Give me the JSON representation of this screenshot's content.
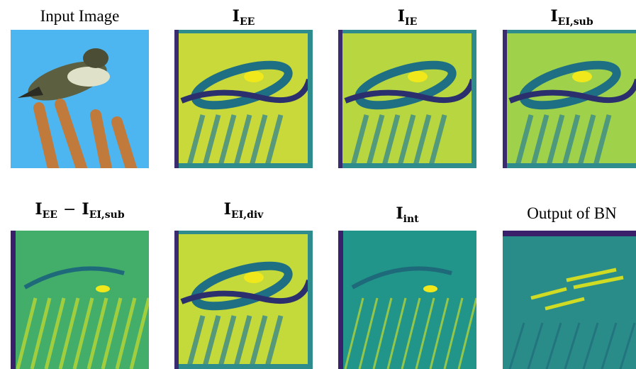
{
  "panels": [
    {
      "caption": {
        "text": "Input Image"
      },
      "kind": "photo",
      "palette": {
        "bg": "#4db5f0",
        "accent": "#c07a3c"
      }
    },
    {
      "caption": {
        "main": "I",
        "sub": "EE"
      },
      "kind": "map-bright",
      "palette": {
        "bg": "#c9d93a",
        "accent": "#1f6f84"
      }
    },
    {
      "caption": {
        "main": "I",
        "sub": "IE"
      },
      "kind": "map-bright",
      "palette": {
        "bg": "#b7d640",
        "accent": "#1f6f84"
      }
    },
    {
      "caption": {
        "main": "I",
        "sub": "EI,sub"
      },
      "kind": "map-bright",
      "palette": {
        "bg": "#9fd24a",
        "accent": "#1f6f84"
      }
    },
    {
      "caption": {
        "main": "I",
        "sub": "EE",
        "op": "−",
        "main2": "I",
        "sub2": "EI,sub"
      },
      "kind": "map-mid",
      "palette": {
        "bg": "#43ad6a",
        "accent": "#c8dc2e"
      }
    },
    {
      "caption": {
        "main": "I",
        "sub": "EI,div"
      },
      "kind": "map-bright",
      "palette": {
        "bg": "#c4da3a",
        "accent": "#1f6f84"
      }
    },
    {
      "caption": {
        "main": "I",
        "sub": "int"
      },
      "kind": "map-dark",
      "palette": {
        "bg": "#21958a",
        "accent": "#c8dc2e"
      }
    },
    {
      "caption": {
        "text": "Output of BN"
      },
      "kind": "map-bn",
      "palette": {
        "bg": "#2a8c89",
        "accent": "#e3e418"
      }
    }
  ]
}
